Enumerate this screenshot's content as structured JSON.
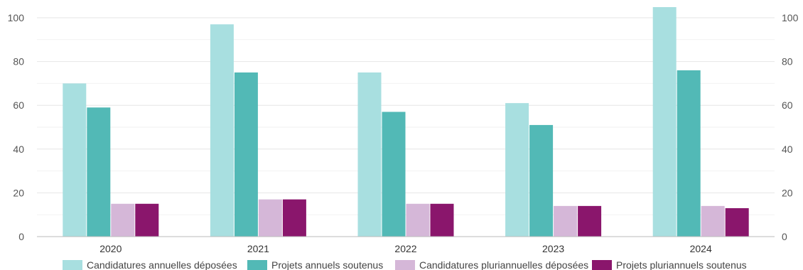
{
  "chart_data": {
    "type": "bar",
    "categories": [
      "2020",
      "2021",
      "2022",
      "2023",
      "2024"
    ],
    "series": [
      {
        "name": "Candidatures annuelles déposées",
        "color": "#a8dfe0",
        "values": [
          70,
          97,
          75,
          61,
          106
        ]
      },
      {
        "name": "Projets annuels soutenus",
        "color": "#52b9b6",
        "values": [
          59,
          75,
          57,
          51,
          76
        ]
      },
      {
        "name": "Candidatures pluriannuelles déposées",
        "color": "#d5b7d8",
        "values": [
          15,
          17,
          15,
          14,
          14
        ]
      },
      {
        "name": "Projets pluriannuels soutenus",
        "color": "#8a166c",
        "values": [
          15,
          17,
          15,
          14,
          13
        ]
      }
    ],
    "ylim": [
      0,
      100
    ],
    "yticks": [
      0,
      20,
      40,
      60,
      80,
      100
    ],
    "y_axis_left": true,
    "y_axis_right": true,
    "grid": true,
    "legend_position": "bottom"
  }
}
